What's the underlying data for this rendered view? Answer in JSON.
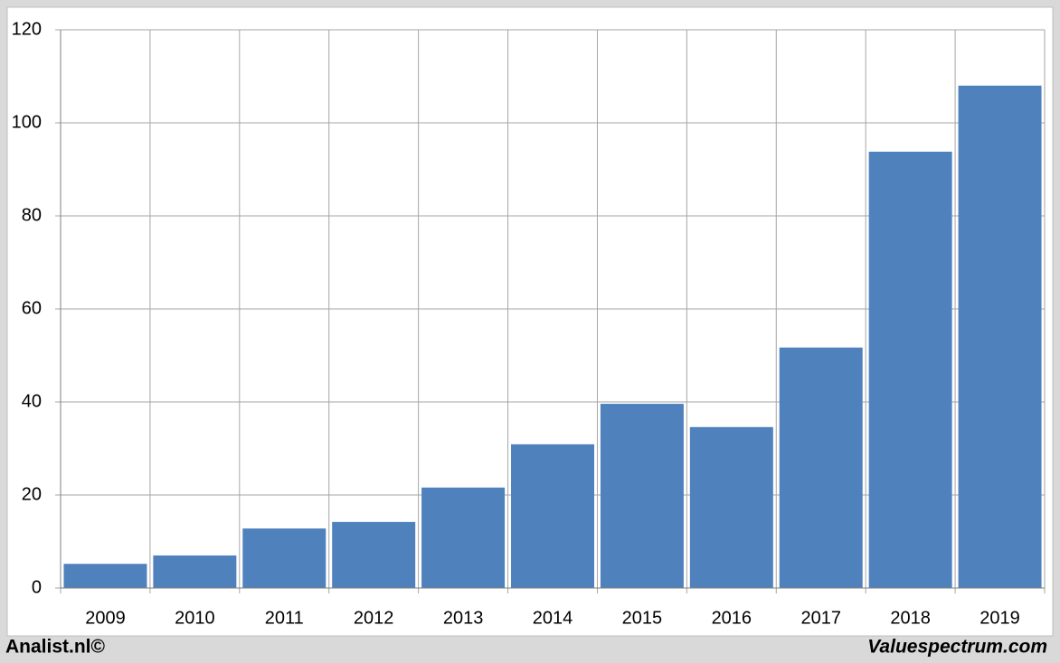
{
  "chart_data": {
    "type": "bar",
    "categories": [
      "2009",
      "2010",
      "2011",
      "2012",
      "2013",
      "2014",
      "2015",
      "2016",
      "2017",
      "2018",
      "2019"
    ],
    "values": [
      5.2,
      7.0,
      12.8,
      14.2,
      21.6,
      30.9,
      39.6,
      34.6,
      51.7,
      93.8,
      108.0
    ],
    "color": "#4f81bd",
    "ylim": [
      0,
      120
    ],
    "yticks": [
      0,
      20,
      40,
      60,
      80,
      100,
      120
    ],
    "grid": true,
    "credits": [
      "Analist.nl©",
      "Valuespectrum.com"
    ]
  }
}
